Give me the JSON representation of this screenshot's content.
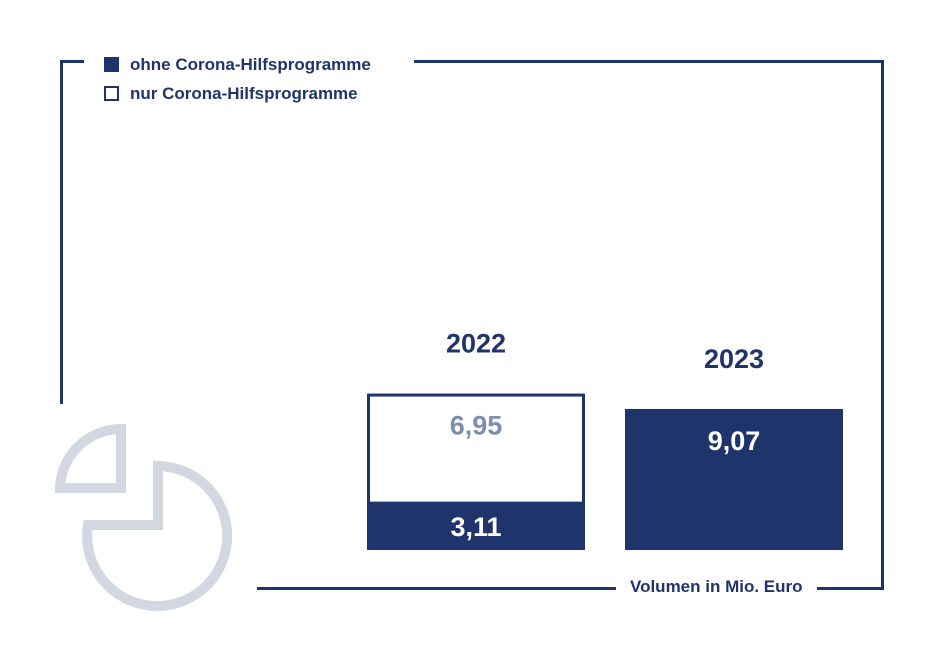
{
  "chart_data": {
    "type": "bar",
    "stacked": true,
    "categories": [
      "2022",
      "2023"
    ],
    "series": [
      {
        "name": "ohne Corona-Hilfsprogramme",
        "values": [
          3.11,
          9.07
        ],
        "labels": [
          "3,11",
          "9,07"
        ]
      },
      {
        "name": "nur Corona-Hilfsprogramme",
        "values": [
          6.95,
          0
        ],
        "labels": [
          "6,95",
          ""
        ]
      }
    ],
    "xlabel": "",
    "ylabel": "",
    "unit_label": "Volumen in Mio. Euro",
    "legend": "top-left",
    "grid": false
  },
  "colors": {
    "navy": "#1f346b",
    "muted_label": "#7c8fae",
    "icon_gray": "#d3d7e1",
    "background": "#ffffff"
  },
  "icons": {
    "decorative": "pie-chart-icon"
  }
}
